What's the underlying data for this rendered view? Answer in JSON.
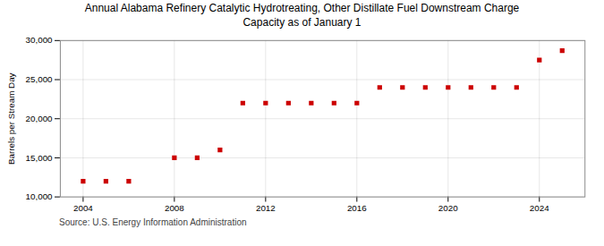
{
  "chart_data": {
    "type": "scatter",
    "title": "Annual Alabama Refinery Catalytic Hydrotreating, Other Distillate Fuel Downstream Charge",
    "subtitle": "Capacity as of January 1",
    "ylabel": "Barrels per Stream Day",
    "source": "Source: U.S. Energy Information Administration",
    "x": [
      2004,
      2005,
      2006,
      2008,
      2009,
      2010,
      2011,
      2012,
      2013,
      2014,
      2015,
      2016,
      2017,
      2018,
      2019,
      2020,
      2021,
      2022,
      2023,
      2024,
      2025
    ],
    "values": [
      12000,
      12000,
      12000,
      15000,
      15000,
      16000,
      22000,
      22000,
      22000,
      22000,
      22000,
      22000,
      24000,
      24000,
      24000,
      24000,
      24000,
      24000,
      24000,
      27500,
      28700
    ],
    "color": "#CC0000",
    "marker": "square",
    "grid": true,
    "xlim": [
      2003.0,
      2026.0
    ],
    "ylim": [
      10000,
      30000
    ],
    "xticks": [
      2004,
      2008,
      2012,
      2016,
      2020,
      2024
    ],
    "yticks": [
      {
        "value": 10000,
        "label": "10,000"
      },
      {
        "value": 15000,
        "label": "15,000"
      },
      {
        "value": 20000,
        "label": "20,000"
      },
      {
        "value": 25000,
        "label": "25,000"
      },
      {
        "value": 30000,
        "label": "30,000"
      }
    ]
  }
}
